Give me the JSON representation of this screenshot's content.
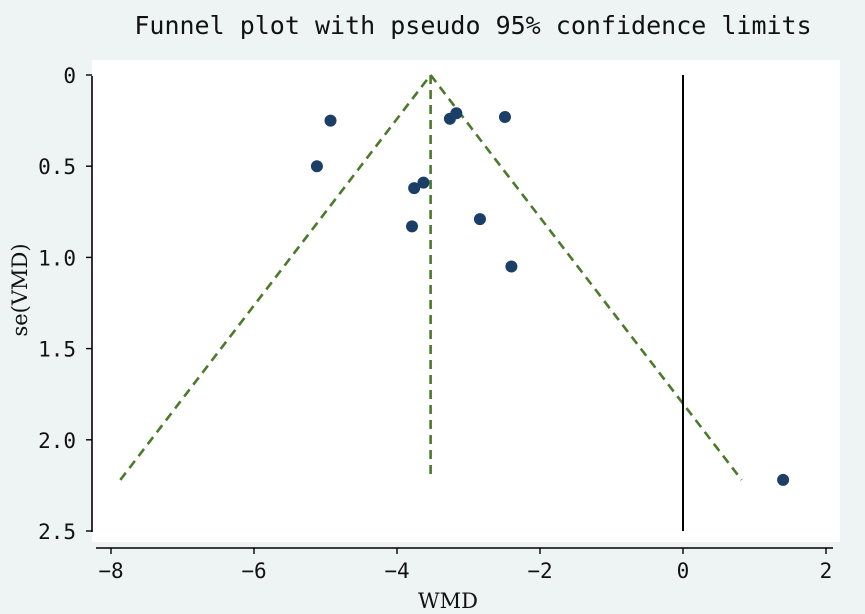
{
  "chart_data": {
    "type": "scatter",
    "title": "Funnel plot with pseudo 95% confidence limits",
    "xlabel": "WMD",
    "ylabel": "se(VMD)",
    "xlim": [
      -8.2,
      2.2
    ],
    "ylim": [
      0,
      2.5
    ],
    "y_reversed": true,
    "x_ticks": [
      {
        "value": -8,
        "label": "−8"
      },
      {
        "value": -6,
        "label": "−6"
      },
      {
        "value": -4,
        "label": "−4"
      },
      {
        "value": -2,
        "label": "−2"
      },
      {
        "value": 0,
        "label": "0"
      },
      {
        "value": 2,
        "label": "2"
      }
    ],
    "y_ticks": [
      {
        "value": 0,
        "label": "0"
      },
      {
        "value": 0.5,
        "label": "0.5"
      },
      {
        "value": 1.0,
        "label": "1.0"
      },
      {
        "value": 1.5,
        "label": "1.5"
      },
      {
        "value": 2.0,
        "label": "2.0"
      },
      {
        "value": 2.5,
        "label": "2.5"
      }
    ],
    "points": [
      {
        "x": -4.93,
        "y": 0.25
      },
      {
        "x": -5.12,
        "y": 0.5
      },
      {
        "x": -3.26,
        "y": 0.24
      },
      {
        "x": -3.17,
        "y": 0.21
      },
      {
        "x": -2.49,
        "y": 0.23
      },
      {
        "x": -3.76,
        "y": 0.62
      },
      {
        "x": -3.63,
        "y": 0.59
      },
      {
        "x": -3.79,
        "y": 0.83
      },
      {
        "x": -2.84,
        "y": 0.79
      },
      {
        "x": -2.4,
        "y": 1.05
      },
      {
        "x": 1.4,
        "y": 2.22
      }
    ],
    "pooled_estimate": -3.53,
    "pseudo_ci": {
      "apex": {
        "x": -3.53,
        "y": 0
      },
      "lower": {
        "x": -7.87,
        "y": 2.22
      },
      "upper": {
        "x": 0.82,
        "y": 2.22
      },
      "center_bottom": {
        "x": -3.53,
        "y": 2.22
      }
    },
    "null_line": {
      "x": 0,
      "y_from": 0,
      "y_to": 2.5
    },
    "colors": {
      "points": "#1b3f66",
      "pseudo_ci": "#4a7a2a",
      "null_line": "#000000"
    }
  }
}
